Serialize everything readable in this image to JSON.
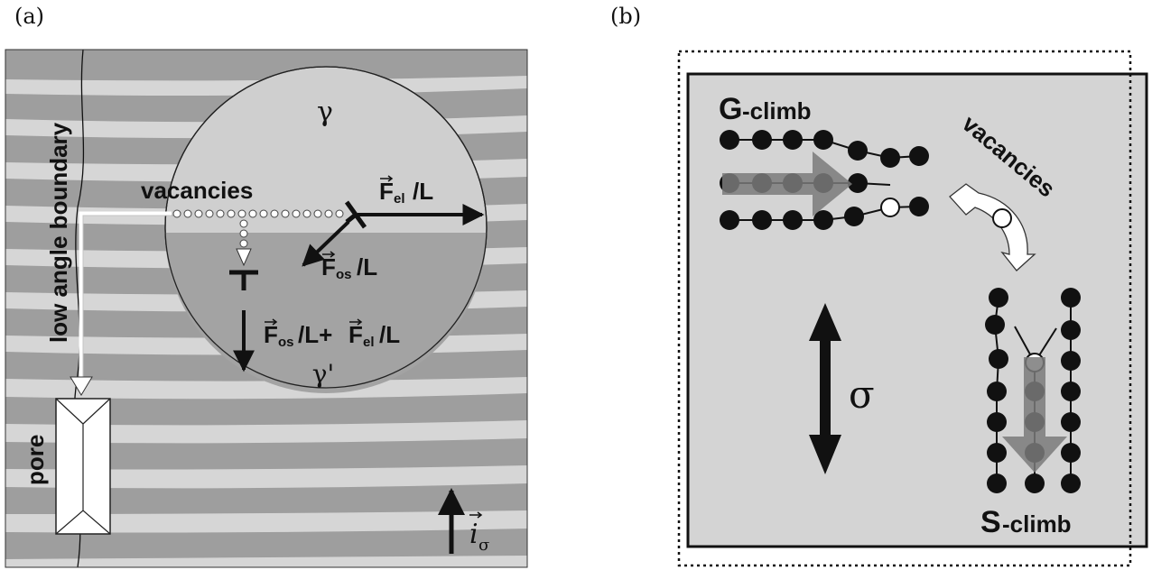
{
  "panel_a": {
    "label": "(a)",
    "gamma": "γ",
    "gamma_prime": "γ'",
    "vacancies": "vacancies",
    "low_angle_boundary": "low angle boundary",
    "pore": "pore",
    "f_el": "F",
    "f_el_sub": "el",
    "per_L": "/L",
    "f_os": "F",
    "f_os_sub": "os",
    "sum_plus": "/L+",
    "sum_end": "/L",
    "i_sigma": "i",
    "i_sigma_sub": "σ"
  },
  "panel_b": {
    "label": "(b)",
    "g_climb_big": "G",
    "g_climb_rest": "-climb",
    "s_climb_big": "S",
    "s_climb_rest": "-climb",
    "vacancies": "vacancies",
    "sigma": "σ"
  }
}
